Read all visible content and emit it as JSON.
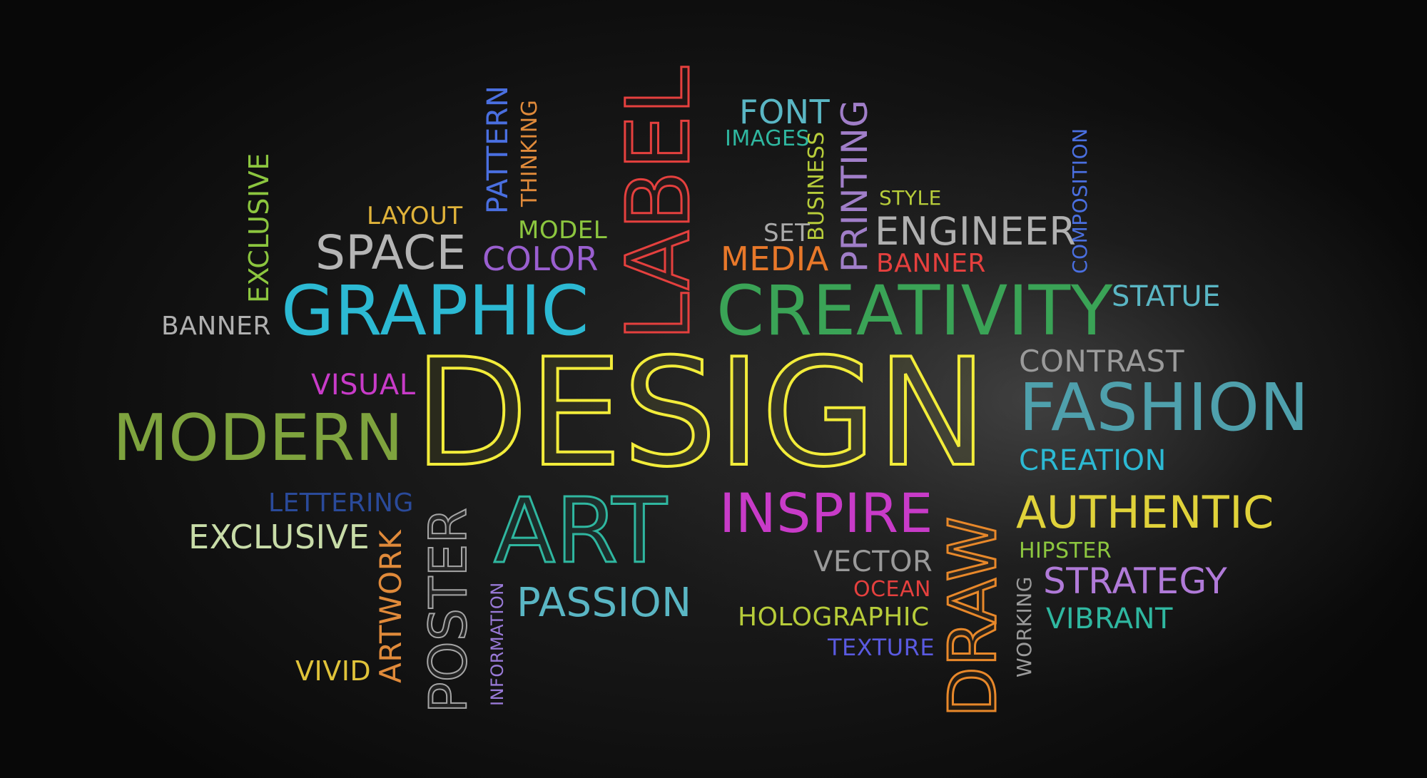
{
  "words": {
    "design": "DESIGN",
    "label": "LABEL",
    "graphic": "GRAPHIC",
    "creativity": "CREATIVITY",
    "modern": "MODERN",
    "fashion": "FASHION",
    "art": "ART",
    "inspire": "INSPIRE",
    "authentic": "AUTHENTIC",
    "draw": "DRAW",
    "poster": "POSTER",
    "space": "SPACE",
    "engineer": "ENGINEER",
    "passion": "PASSION",
    "strategy": "STRATEGY",
    "exclusive_vertical": "EXCLUSIVE",
    "exclusive_horizontal": "EXCLUSIVE",
    "layout": "LAYOUT",
    "pattern": "PATTERN",
    "thinking": "THINKING",
    "model": "MODEL",
    "color": "COLOR",
    "font": "FONT",
    "images": "IMAGES",
    "business": "BUSINESS",
    "printing": "PRINTING",
    "style": "STYLE",
    "set": "SET",
    "media": "MEDIA",
    "banner_right": "BANNER",
    "banner_left": "BANNER",
    "composition": "COMPOSITION",
    "statue": "STATUE",
    "contrast": "CONTRAST",
    "creation": "CREATION",
    "visual": "VISUAL",
    "lettering": "LETTERING",
    "artwork": "ARTWORK",
    "vivid": "VIVID",
    "information": "INFORMATION",
    "vector": "VECTOR",
    "ocean": "OCEAN",
    "holographic": "HOLOGRAPHIC",
    "texture": "TEXTURE",
    "hipster": "HIPSTER",
    "working": "WORKING",
    "vibrant": "VIBRANT"
  },
  "colors": {
    "yellow": "#f2ec3a",
    "red": "#e5403e",
    "cyan": "#2cb9d3",
    "green": "#3aa356",
    "olive": "#7ea33e",
    "teal": "#2fb7a0",
    "magenta": "#c83bc8",
    "orange": "#e8882a",
    "gray": "#a5a5a5"
  }
}
